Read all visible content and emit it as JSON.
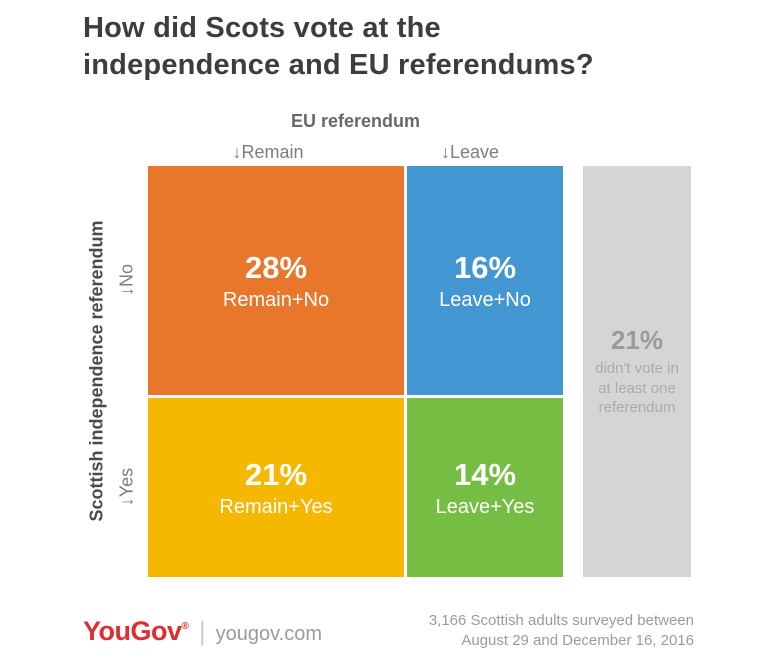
{
  "title": {
    "line1": "How did Scots vote at the",
    "line2": "independence and EU referendums?"
  },
  "axes": {
    "top_title": "EU referendum",
    "col_remain": "↓Remain",
    "col_leave": "↓Leave",
    "left_title": "Scottish independence referendum",
    "row_no": "↓No",
    "row_yes": "↓Yes"
  },
  "cells": {
    "remain_no": {
      "value": "28%",
      "label": "Remain+No",
      "color": "#E8772B"
    },
    "leave_no": {
      "value": "16%",
      "label": "Leave+No",
      "color": "#4297D3"
    },
    "remain_yes": {
      "value": "21%",
      "label": "Remain+Yes",
      "color": "#F6B700"
    },
    "leave_yes": {
      "value": "14%",
      "label": "Leave+Yes",
      "color": "#76BE43"
    }
  },
  "aside": {
    "value": "21%",
    "label": "didn't vote in at least one referendum",
    "color": "#D5D5D5"
  },
  "footer": {
    "logo": "YouGov",
    "registered_mark": "®",
    "divider": "|",
    "website": "yougov.com",
    "note_line1": "3,166 Scottish adults surveyed between",
    "note_line2": "August 29 and December 16, 2016"
  },
  "chart_data": {
    "type": "heatmap",
    "title": "How did Scots vote at the independence and EU referendums?",
    "x_axis": {
      "title": "EU referendum",
      "categories": [
        "Remain",
        "Leave"
      ]
    },
    "y_axis": {
      "title": "Scottish independence referendum",
      "categories": [
        "No",
        "Yes"
      ]
    },
    "series": [
      {
        "name": "No",
        "values": [
          28,
          16
        ]
      },
      {
        "name": "Yes",
        "values": [
          21,
          14
        ]
      }
    ],
    "unit": "percent",
    "other_category": {
      "value": 21,
      "label": "didn't vote in at least one referendum"
    },
    "cell_colors": {
      "Remain+No": "#E8772B",
      "Leave+No": "#4297D3",
      "Remain+Yes": "#F6B700",
      "Leave+Yes": "#76BE43",
      "other": "#D5D5D5"
    },
    "layout": "mosaic grid; column widths and row heights proportional to vote shares",
    "source_note": "3,166 Scottish adults surveyed between August 29 and December 16, 2016"
  }
}
